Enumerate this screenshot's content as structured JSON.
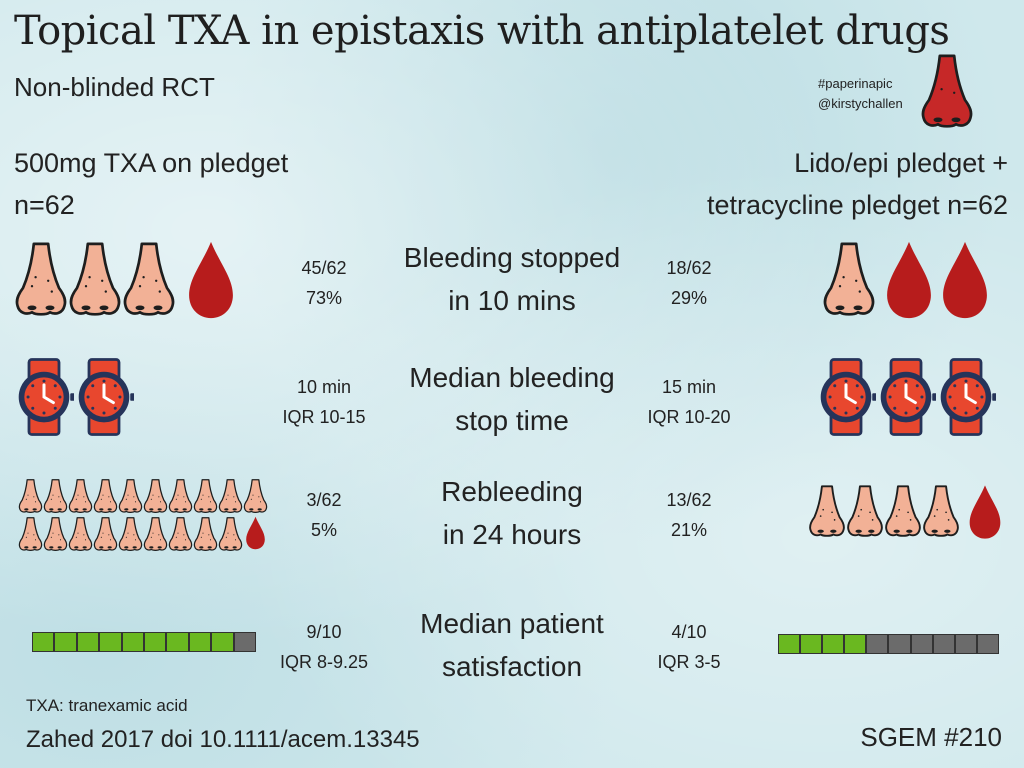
{
  "title": "Topical TXA in epistaxis with antiplatelet drugs",
  "subtitle": "Non-blinded RCT",
  "credits": {
    "hashtag": "#paperinapic",
    "handle": "@kirstychallen"
  },
  "arm_left": {
    "line1": "500mg TXA on pledget",
    "line2": "n=62"
  },
  "arm_right": {
    "line1": "Lido/epi pledget +",
    "line2": "tetracycline pledget n=62"
  },
  "colors": {
    "nose": "#f2b196",
    "blood": "#b71c1c",
    "red_nose": "#c62828",
    "watch_strap": "#e8472e",
    "watch_rim": "#26345a",
    "bar_green": "#6ab820",
    "bar_gray": "#6b6b6b"
  },
  "outcomes": [
    {
      "label1": "Bleeding stopped",
      "label2": "in 10 mins",
      "left_stat1": "45/62",
      "left_stat2": "73%",
      "right_stat1": "18/62",
      "right_stat2": "29%",
      "left_icons": {
        "noses": 3,
        "drops": 1
      },
      "right_icons": {
        "noses": 1,
        "drops": 2
      }
    },
    {
      "label1": "Median bleeding",
      "label2": "stop time",
      "left_stat1": "10 min",
      "left_stat2": "IQR 10-15",
      "right_stat1": "15 min",
      "right_stat2": "IQR 10-20",
      "left_icons": {
        "watches": 2
      },
      "right_icons": {
        "watches": 3
      }
    },
    {
      "label1": "Rebleeding",
      "label2": "in 24 hours",
      "left_stat1": "3/62",
      "left_stat2": "5%",
      "right_stat1": "13/62",
      "right_stat2": "21%",
      "left_icons": {
        "noses": 19,
        "drops": 1
      },
      "right_icons": {
        "noses": 4,
        "drops": 1
      }
    },
    {
      "label1": "Median patient",
      "label2": "satisfaction",
      "left_stat1": "9/10",
      "left_stat2": "IQR 8-9.25",
      "right_stat1": "4/10",
      "right_stat2": "IQR 3-5",
      "left_bar": {
        "filled": 9,
        "total": 10
      },
      "right_bar": {
        "filled": 4,
        "total": 10
      }
    }
  ],
  "footer": {
    "abbrev": "TXA: tranexamic acid",
    "citation": "Zahed 2017 doi 10.1111/acem.13345",
    "sgem": "SGEM #210"
  }
}
